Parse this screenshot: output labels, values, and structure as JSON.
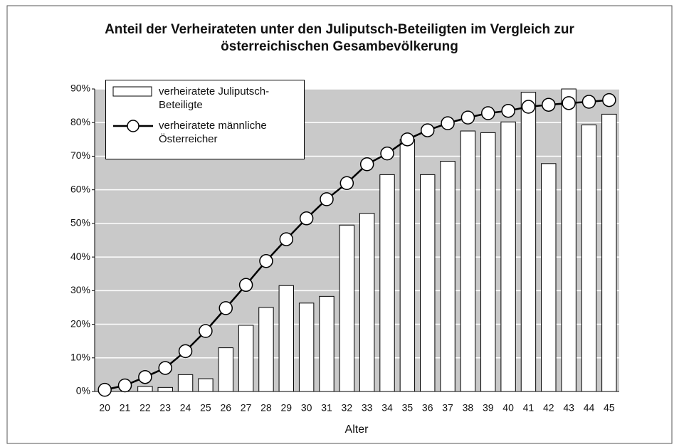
{
  "chart_data": {
    "type": "bar",
    "title": "Anteil der Verheirateten unter den Juliputsch-Beteiligten im Vergleich zur österreichischen Gesambevölkerung",
    "x_label": "Alter",
    "categories": [
      "20",
      "21",
      "22",
      "23",
      "24",
      "25",
      "26",
      "27",
      "28",
      "29",
      "30",
      "31",
      "32",
      "33",
      "34",
      "35",
      "36",
      "37",
      "38",
      "39",
      "40",
      "41",
      "42",
      "43",
      "44",
      "45"
    ],
    "series": [
      {
        "name": "verheiratete Juliputsch-Beteiligte",
        "type": "bar",
        "color": "#ffffff",
        "values": [
          0,
          0,
          1.5,
          1.2,
          5,
          3.8,
          13,
          19.7,
          25,
          31.5,
          26.3,
          28.3,
          49.5,
          53,
          64.5,
          75,
          64.5,
          68.5,
          77.5,
          77,
          80.2,
          89,
          67.8,
          90,
          79.3,
          82.5
        ]
      },
      {
        "name": "verheiratete männliche Österreicher",
        "type": "line",
        "color": "#000000",
        "values": [
          0.5,
          1.8,
          4.3,
          7,
          12,
          18,
          24.8,
          31.7,
          38.8,
          45.3,
          51.5,
          57.2,
          62,
          67.6,
          70.8,
          75,
          77.7,
          79.8,
          81.5,
          82.8,
          83.5,
          84.7,
          85.3,
          85.8,
          86.2,
          86.7
        ]
      }
    ],
    "ylim": [
      0,
      90
    ],
    "yticks": [
      {
        "value": 0,
        "label": "0%"
      },
      {
        "value": 10,
        "label": "10%"
      },
      {
        "value": 20,
        "label": "20%"
      },
      {
        "value": 30,
        "label": "30%"
      },
      {
        "value": 40,
        "label": "40%"
      },
      {
        "value": 50,
        "label": "50%"
      },
      {
        "value": 60,
        "label": "60%"
      },
      {
        "value": 70,
        "label": "70%"
      },
      {
        "value": 80,
        "label": "80%"
      },
      {
        "value": 90,
        "label": "90%"
      }
    ],
    "grid": true,
    "legend": "upper left"
  }
}
